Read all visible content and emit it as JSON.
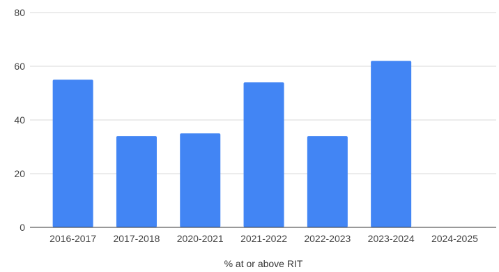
{
  "chart_data": {
    "type": "bar",
    "title": "",
    "xlabel": "% at or above RIT",
    "ylabel": "",
    "categories": [
      "2016-2017",
      "2017-2018",
      "2020-2021",
      "2021-2022",
      "2022-2023",
      "2023-2024",
      "2024-2025"
    ],
    "values": [
      55,
      34,
      35,
      54,
      34,
      62,
      0
    ],
    "ylim": [
      0,
      80
    ],
    "yticks": [
      0,
      20,
      40,
      60,
      80
    ],
    "grid": true,
    "bar_color": "#4285F4"
  }
}
